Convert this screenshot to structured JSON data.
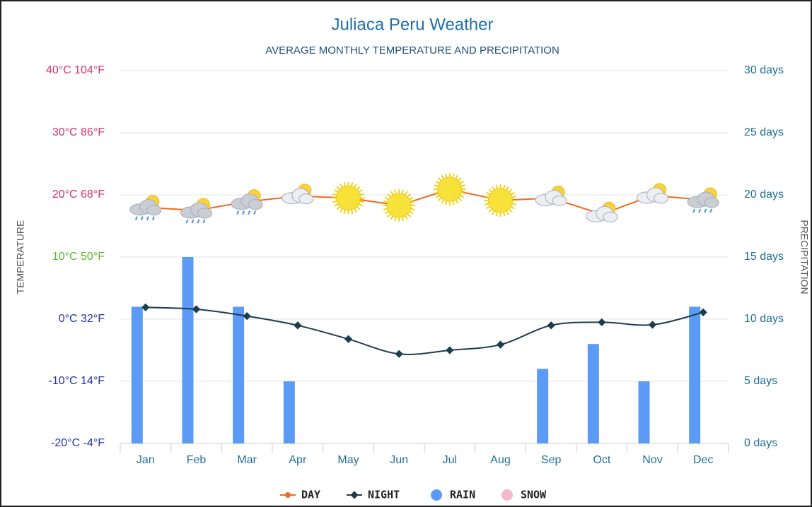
{
  "chart_data": {
    "type": "bar",
    "title": "Juliaca Peru Weather",
    "subtitle": "AVERAGE MONTHLY TEMPERATURE AND PRECIPITATION",
    "ylabel": "TEMPERATURE",
    "y2label": "PRECIPITATION",
    "categories": [
      "Jan",
      "Feb",
      "Mar",
      "Apr",
      "May",
      "Jun",
      "Jul",
      "Aug",
      "Sep",
      "Oct",
      "Nov",
      "Dec"
    ],
    "ylim": [
      -20,
      40
    ],
    "yticks": [
      {
        "value": -20,
        "label": "-20°C -4°F"
      },
      {
        "value": -10,
        "label": "-10°C 14°F"
      },
      {
        "value": 0,
        "label": "0°C 32°F"
      },
      {
        "value": 10,
        "label": "10°C 50°F"
      },
      {
        "value": 20,
        "label": "20°C 68°F"
      },
      {
        "value": 30,
        "label": "30°C 86°F"
      },
      {
        "value": 40,
        "label": "40°C 104°F"
      }
    ],
    "ytick_colors": [
      "#2233aa",
      "#2233aa",
      "#2233aa",
      "#5cb82e",
      "#d6336c",
      "#d6336c",
      "#d6336c"
    ],
    "y2lim": [
      0,
      30
    ],
    "y2ticks": [
      {
        "value": 0,
        "label": "0 days"
      },
      {
        "value": 5,
        "label": "5 days"
      },
      {
        "value": 10,
        "label": "10 days"
      },
      {
        "value": 15,
        "label": "15 days"
      },
      {
        "value": 20,
        "label": "20 days"
      },
      {
        "value": 25,
        "label": "25 days"
      },
      {
        "value": 30,
        "label": "30 days"
      }
    ],
    "grid": true,
    "legend": "bottom",
    "day_icons": [
      "rain",
      "rain",
      "rain",
      "partly",
      "sun",
      "sun",
      "sun",
      "sun",
      "partly",
      "partly",
      "partly",
      "rain"
    ],
    "series": [
      {
        "name": "DAY",
        "type": "line",
        "color": "#f06a1e",
        "values": [
          18,
          17.5,
          18.9,
          19.8,
          19.5,
          18.3,
          20.9,
          19.1,
          19.5,
          16.9,
          19.9,
          19.2
        ]
      },
      {
        "name": "NIGHT",
        "type": "line",
        "color": "#1c3d4f",
        "values": [
          1.9,
          1.6,
          0.5,
          -1.0,
          -3.2,
          -5.6,
          -5.0,
          -4.1,
          -1.0,
          -0.5,
          -0.9,
          1.1
        ]
      },
      {
        "name": "RAIN",
        "type": "bar",
        "axis": "y2",
        "color": "#5b9bf5",
        "values": [
          11,
          15,
          11,
          5,
          0,
          0,
          0,
          0,
          6,
          8,
          5,
          11
        ]
      },
      {
        "name": "SNOW",
        "type": "bar",
        "axis": "y2",
        "color": "#f5b8cc",
        "values": [
          0,
          0,
          0,
          0,
          0,
          0,
          0,
          0,
          0,
          0,
          0,
          0
        ]
      }
    ]
  }
}
